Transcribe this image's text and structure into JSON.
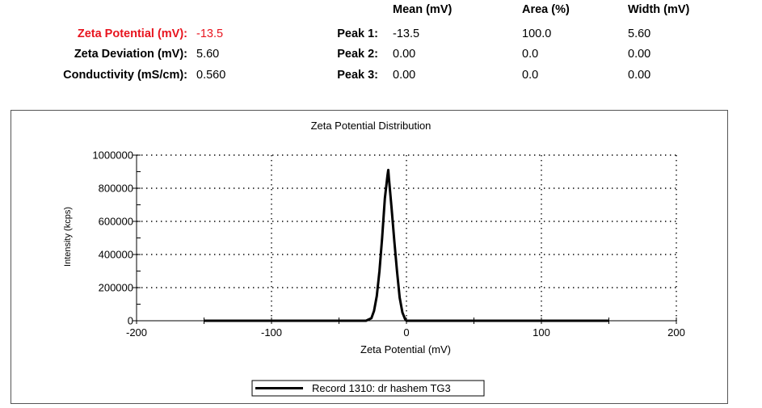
{
  "summary": {
    "headers": {
      "mean": "Mean (mV)",
      "area": "Area (%)",
      "width": "Width (mV)"
    },
    "zeta_potential": {
      "label": "Zeta Potential (mV):",
      "value": "-13.5"
    },
    "zeta_deviation": {
      "label": "Zeta Deviation (mV):",
      "value": "5.60"
    },
    "conductivity": {
      "label": "Conductivity (mS/cm):",
      "value": "0.560"
    },
    "peaks": [
      {
        "label": "Peak 1:",
        "mean": "-13.5",
        "area": "100.0",
        "width": "5.60"
      },
      {
        "label": "Peak 2:",
        "mean": "0.00",
        "area": "0.0",
        "width": "0.00"
      },
      {
        "label": "Peak 3:",
        "mean": "0.00",
        "area": "0.0",
        "width": "0.00"
      }
    ]
  },
  "colors": {
    "highlight": "#e8141e",
    "line": "#000000",
    "grid": "#000000"
  },
  "chart_data": {
    "type": "line",
    "title": "Zeta Potential Distribution",
    "xlabel": "Zeta Potential (mV)",
    "ylabel": "Intensity (kcps)",
    "xlim": [
      -200,
      200
    ],
    "ylim": [
      0,
      1000000
    ],
    "xticks": [
      -200,
      -100,
      0,
      100,
      200
    ],
    "yticks": [
      0,
      200000,
      400000,
      600000,
      800000,
      1000000
    ],
    "grid": "dotted",
    "legend_position": "bottom-center",
    "series": [
      {
        "name": "Record 1310: dr hashem TG3",
        "x": [
          -150,
          -50,
          -30,
          -26,
          -24,
          -22,
          -20,
          -18,
          -16,
          -14,
          -13.5,
          -13,
          -11,
          -9,
          -7,
          -5,
          -3,
          -1,
          0,
          5,
          150
        ],
        "y": [
          0,
          0,
          0,
          15000,
          60000,
          150000,
          300000,
          500000,
          740000,
          880000,
          910000,
          860000,
          680000,
          480000,
          300000,
          140000,
          50000,
          10000,
          0,
          0,
          0
        ]
      }
    ]
  }
}
